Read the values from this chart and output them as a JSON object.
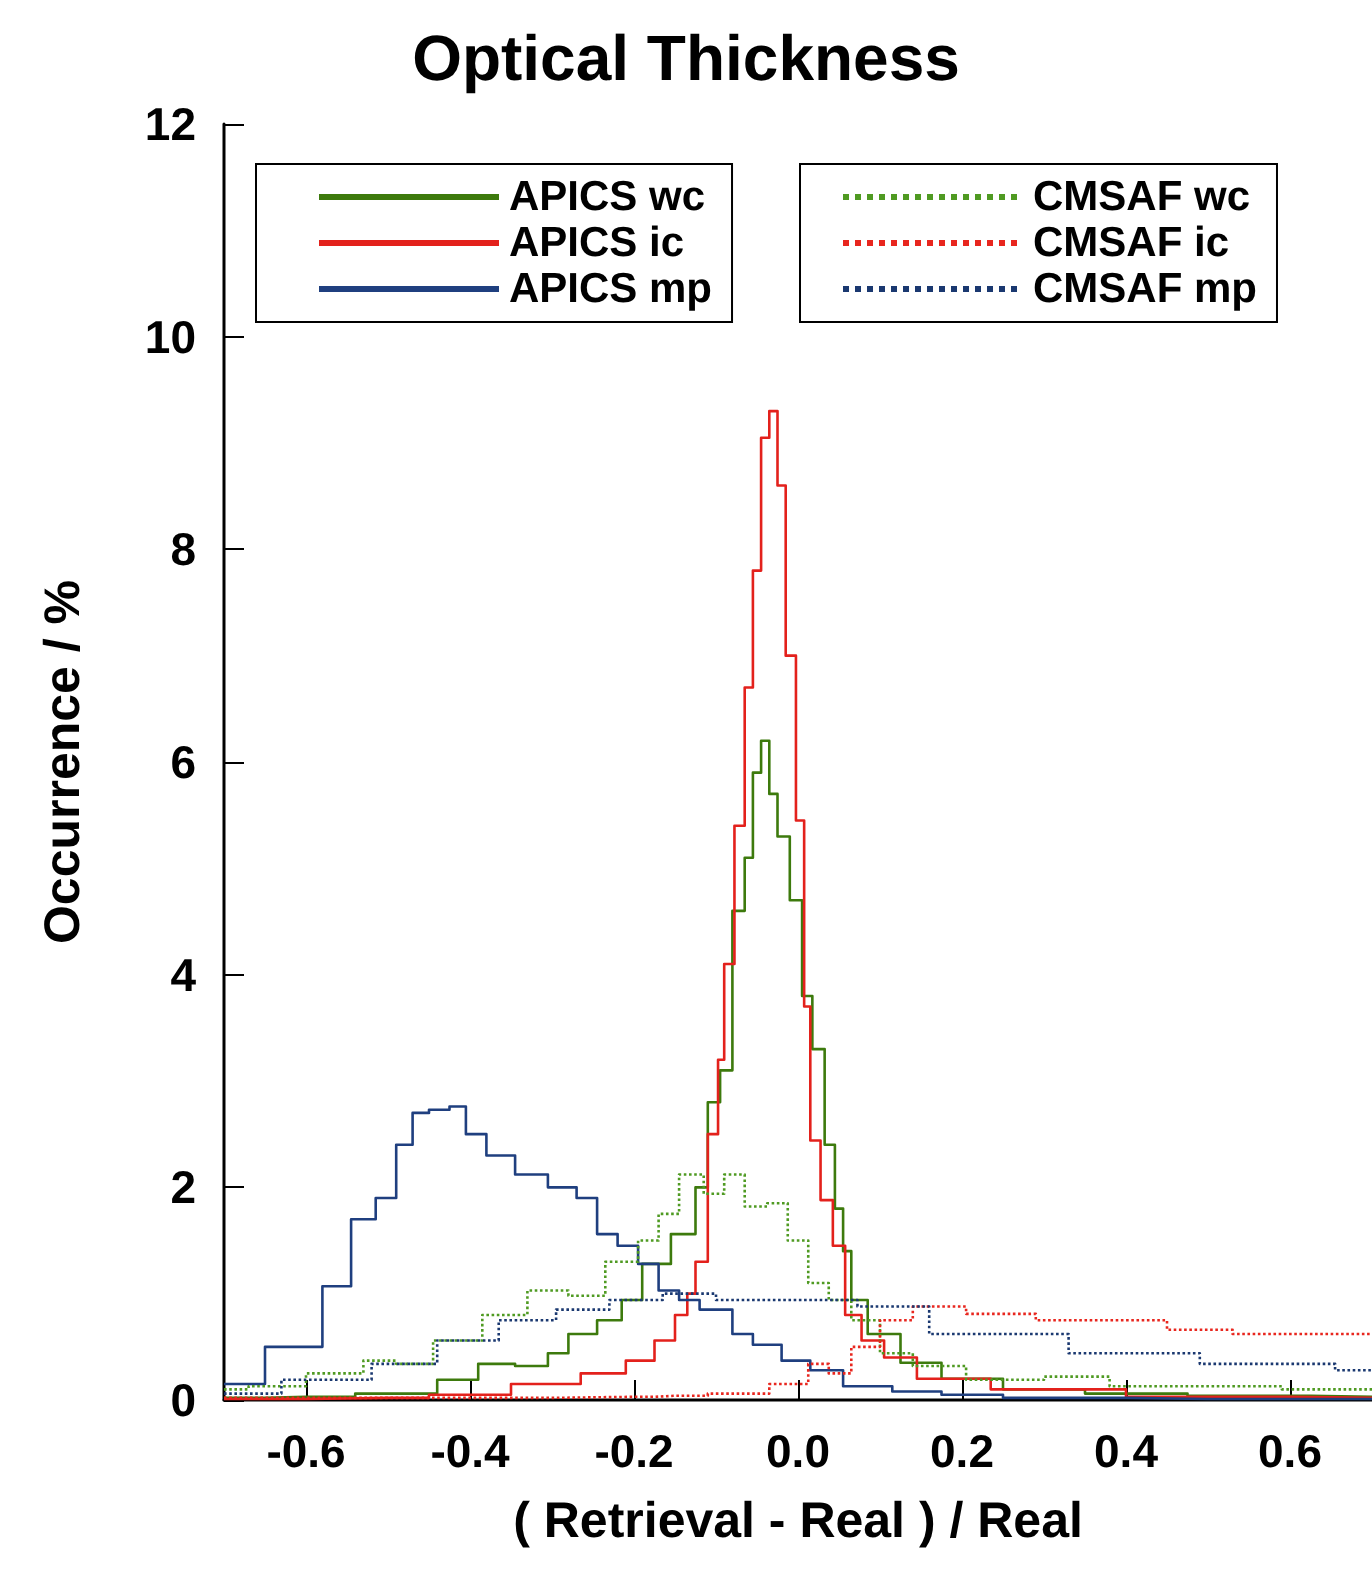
{
  "chart_data": {
    "type": "step",
    "title": "Optical Thickness",
    "xlabel": "( Retrieval - Real ) / Real",
    "ylabel": "Occurrence / %",
    "xlim": [
      -0.7,
      0.7
    ],
    "xticks": [
      -0.6,
      -0.4,
      -0.2,
      {
        "value": 0,
        "label": "0.0"
      },
      0.2,
      0.4,
      0.6
    ],
    "ylim": [
      0,
      12
    ],
    "yticks": [
      0,
      2,
      4,
      6,
      8,
      10,
      12
    ],
    "grid": false,
    "legend": "top",
    "series": [
      {
        "name": "APICS wc",
        "color": "#3d7a0d",
        "line_style": "solid",
        "x": [
          -0.7,
          -0.6,
          -0.48,
          -0.4,
          -0.38,
          -0.31,
          -0.3,
          -0.26,
          -0.23,
          -0.2,
          -0.18,
          -0.13,
          -0.12,
          -0.1,
          -0.09,
          -0.07,
          -0.06,
          -0.05,
          -0.04,
          -0.03,
          -0.02,
          0,
          0.01,
          0.025,
          0.04,
          0.05,
          0.06,
          0.07,
          0.1,
          0.15,
          0.2,
          0.3,
          0.4,
          0.55,
          0.7
        ],
        "values": [
          0.02,
          0.03,
          0.06,
          0.19,
          0.34,
          0.32,
          0.44,
          0.62,
          0.75,
          0.94,
          1.28,
          1.56,
          2.0,
          2.8,
          3.1,
          4.6,
          5.1,
          5.9,
          6.2,
          5.7,
          5.3,
          4.7,
          3.8,
          3.3,
          2.4,
          1.8,
          1.4,
          0.94,
          0.62,
          0.35,
          0.2,
          0.1,
          0.06,
          0.04,
          0.03
        ]
      },
      {
        "name": "APICS ic",
        "color": "#e3211c",
        "line_style": "solid",
        "x": [
          -0.7,
          -0.5,
          -0.4,
          -0.3,
          -0.23,
          -0.19,
          -0.16,
          -0.14,
          -0.13,
          -0.12,
          -0.1,
          -0.095,
          -0.085,
          -0.07,
          -0.06,
          -0.05,
          -0.04,
          -0.03,
          -0.02,
          -0.01,
          0.005,
          0.01,
          0.02,
          0.035,
          0.05,
          0.065,
          0.09,
          0.12,
          0.17,
          0.3,
          0.5,
          0.7
        ],
        "values": [
          0.01,
          0.02,
          0.05,
          0.15,
          0.25,
          0.37,
          0.56,
          0.8,
          1.0,
          1.3,
          2.5,
          3.2,
          4.1,
          5.4,
          6.7,
          7.8,
          9.05,
          9.3,
          8.6,
          7.0,
          5.45,
          3.7,
          2.44,
          1.88,
          1.45,
          0.8,
          0.56,
          0.4,
          0.2,
          0.1,
          0.03,
          0.02
        ]
      },
      {
        "name": "APICS mp",
        "color": "#1f3f7f",
        "line_style": "solid",
        "x": [
          -0.7,
          -0.6,
          -0.56,
          -0.53,
          -0.5,
          -0.48,
          -0.46,
          -0.44,
          -0.41,
          -0.4,
          -0.36,
          -0.33,
          -0.28,
          -0.26,
          -0.23,
          -0.21,
          -0.18,
          -0.16,
          -0.13,
          -0.11,
          -0.09,
          -0.07,
          -0.04,
          0,
          0.03,
          0.08,
          0.15,
          0.2,
          0.3,
          0.5,
          0.7
        ],
        "values": [
          0.15,
          0.5,
          1.07,
          1.7,
          1.9,
          2.4,
          2.7,
          2.73,
          2.76,
          2.5,
          2.3,
          2.12,
          2.0,
          1.9,
          1.56,
          1.45,
          1.28,
          1.03,
          0.94,
          0.85,
          0.85,
          0.62,
          0.52,
          0.37,
          0.28,
          0.13,
          0.08,
          0.05,
          0.02,
          0.01,
          0.01
        ]
      },
      {
        "name": "CMSAF wc",
        "color": "#4f9a22",
        "line_style": "dotted",
        "x": [
          -0.7,
          -0.64,
          -0.56,
          -0.5,
          -0.48,
          -0.41,
          -0.36,
          -0.3,
          -0.26,
          -0.21,
          -0.18,
          -0.16,
          -0.13,
          -0.1,
          -0.08,
          -0.05,
          -0.025,
          0,
          0.025,
          0.05,
          0.08,
          0.12,
          0.16,
          0.25,
          0.35,
          0.41,
          0.53,
          0.65,
          0.7
        ],
        "values": [
          0.1,
          0.13,
          0.25,
          0.37,
          0.34,
          0.56,
          0.8,
          1.03,
          0.98,
          1.3,
          1.5,
          1.75,
          2.12,
          1.94,
          2.12,
          1.82,
          1.85,
          1.5,
          1.1,
          0.94,
          0.75,
          0.44,
          0.32,
          0.19,
          0.22,
          0.13,
          0.13,
          0.1,
          0.1
        ]
      },
      {
        "name": "CMSAF ic",
        "color": "#e8261e",
        "line_style": "dotted",
        "x": [
          -0.7,
          -0.4,
          -0.2,
          -0.15,
          -0.07,
          0,
          0.025,
          0.05,
          0.08,
          0.12,
          0.16,
          0.25,
          0.33,
          0.41,
          0.49,
          0.57,
          0.7
        ],
        "values": [
          0.02,
          0.02,
          0.03,
          0.04,
          0.06,
          0.15,
          0.34,
          0.25,
          0.5,
          0.75,
          0.88,
          0.81,
          0.75,
          0.75,
          0.66,
          0.62,
          0.62
        ]
      },
      {
        "name": "CMSAF mp",
        "color": "#1a3870",
        "line_style": "dotted",
        "x": [
          -0.7,
          -0.56,
          -0.48,
          -0.4,
          -0.33,
          -0.26,
          -0.2,
          -0.13,
          -0.07,
          0,
          0.025,
          0.12,
          0.2,
          0.29,
          0.37,
          0.45,
          0.53,
          0.61,
          0.7
        ],
        "values": [
          0.06,
          0.19,
          0.34,
          0.56,
          0.75,
          0.85,
          0.94,
          1.0,
          0.94,
          0.94,
          0.94,
          0.88,
          0.62,
          0.62,
          0.44,
          0.44,
          0.34,
          0.34,
          0.28
        ]
      }
    ]
  }
}
